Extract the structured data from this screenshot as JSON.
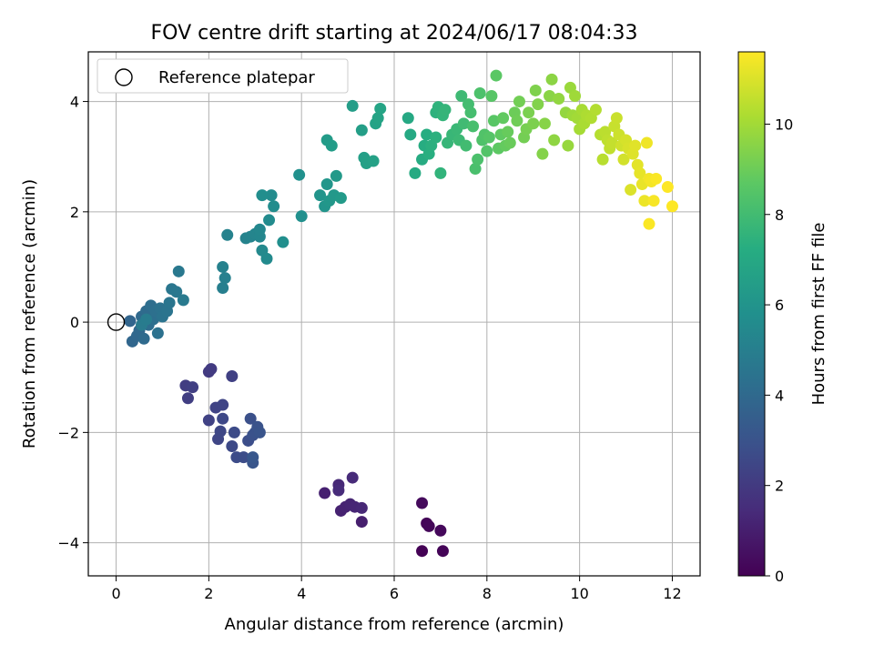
{
  "chart_data": {
    "type": "scatter",
    "title": "FOV centre drift starting at 2024/06/17 08:04:33",
    "xlabel": "Angular distance from reference (arcmin)",
    "ylabel": "Rotation from reference (arcmin)",
    "xlim": [
      -0.6,
      12.6
    ],
    "ylim": [
      -4.6,
      4.9
    ],
    "xticks": [
      0,
      2,
      4,
      6,
      8,
      10,
      12
    ],
    "yticks": [
      -4,
      -2,
      0,
      2,
      4
    ],
    "grid": true,
    "legend": {
      "position": "top-left",
      "entries": [
        "Reference platepar"
      ]
    },
    "reference_point": {
      "x": 0,
      "y": 0
    },
    "colorbar": {
      "label": "Hours from first FF file",
      "range": [
        0,
        11.6
      ],
      "ticks": [
        0,
        2,
        4,
        6,
        8,
        10
      ],
      "colormap": "viridis"
    },
    "points": [
      [
        6.6,
        -4.15,
        0.05
      ],
      [
        7.05,
        -4.15,
        0.1
      ],
      [
        6.7,
        -3.65,
        0.15
      ],
      [
        6.75,
        -3.7,
        0.2
      ],
      [
        7.0,
        -3.78,
        0.25
      ],
      [
        6.6,
        -3.28,
        0.3
      ],
      [
        5.3,
        -3.62,
        1.0
      ],
      [
        4.5,
        -3.1,
        1.05
      ],
      [
        4.85,
        -3.42,
        1.1
      ],
      [
        4.95,
        -3.35,
        1.15
      ],
      [
        5.05,
        -3.3,
        1.2
      ],
      [
        5.15,
        -3.35,
        1.25
      ],
      [
        5.3,
        -3.37,
        1.3
      ],
      [
        4.8,
        -2.95,
        1.35
      ],
      [
        5.1,
        -2.82,
        1.4
      ],
      [
        4.8,
        -3.05,
        1.45
      ],
      [
        2.0,
        -0.9,
        2.0
      ],
      [
        2.05,
        -0.85,
        2.05
      ],
      [
        1.5,
        -1.15,
        2.1
      ],
      [
        1.55,
        -1.38,
        2.15
      ],
      [
        1.65,
        -1.18,
        2.2
      ],
      [
        2.5,
        -0.98,
        2.25
      ],
      [
        2.0,
        -1.78,
        2.3
      ],
      [
        2.15,
        -1.55,
        2.35
      ],
      [
        2.3,
        -1.5,
        2.4
      ],
      [
        2.2,
        -2.12,
        2.45
      ],
      [
        2.25,
        -1.98,
        2.5
      ],
      [
        2.3,
        -1.75,
        2.55
      ],
      [
        2.5,
        -2.25,
        2.6
      ],
      [
        2.55,
        -2.0,
        2.65
      ],
      [
        2.6,
        -2.45,
        2.7
      ],
      [
        2.75,
        -2.45,
        2.75
      ],
      [
        2.85,
        -2.15,
        2.8
      ],
      [
        2.9,
        -1.75,
        2.85
      ],
      [
        2.95,
        -2.05,
        2.9
      ],
      [
        3.0,
        -2.0,
        2.95
      ],
      [
        3.05,
        -1.9,
        3.0
      ],
      [
        3.1,
        -2.0,
        3.05
      ],
      [
        2.95,
        -2.55,
        3.1
      ],
      [
        2.95,
        -2.45,
        3.15
      ],
      [
        0.3,
        0.02,
        3.8
      ],
      [
        0.35,
        -0.35,
        3.85
      ],
      [
        0.45,
        -0.25,
        3.9
      ],
      [
        0.5,
        -0.15,
        3.95
      ],
      [
        0.55,
        0.1,
        4.0
      ],
      [
        0.6,
        -0.3,
        4.05
      ],
      [
        0.65,
        0.2,
        4.1
      ],
      [
        0.7,
        -0.05,
        4.15
      ],
      [
        0.75,
        0.3,
        4.2
      ],
      [
        0.8,
        0.05,
        4.25
      ],
      [
        0.85,
        0.2,
        4.3
      ],
      [
        0.9,
        -0.2,
        4.35
      ],
      [
        0.95,
        0.25,
        4.4
      ],
      [
        1.0,
        0.1,
        4.45
      ],
      [
        1.1,
        0.2,
        4.5
      ],
      [
        1.15,
        0.35,
        4.55
      ],
      [
        1.2,
        0.6,
        4.6
      ],
      [
        1.3,
        0.55,
        4.65
      ],
      [
        1.35,
        0.92,
        4.7
      ],
      [
        1.45,
        0.4,
        4.75
      ],
      [
        0.55,
        -0.05,
        4.8
      ],
      [
        0.65,
        0.05,
        4.85
      ],
      [
        2.3,
        0.62,
        5.0
      ],
      [
        2.35,
        0.8,
        5.05
      ],
      [
        2.3,
        1.0,
        5.1
      ],
      [
        2.4,
        1.58,
        5.15
      ],
      [
        2.8,
        1.52,
        5.2
      ],
      [
        2.9,
        1.55,
        5.25
      ],
      [
        3.0,
        1.6,
        5.3
      ],
      [
        3.1,
        1.55,
        5.35
      ],
      [
        3.1,
        1.68,
        5.4
      ],
      [
        3.15,
        1.3,
        5.45
      ],
      [
        3.25,
        1.15,
        5.5
      ],
      [
        3.3,
        1.85,
        5.55
      ],
      [
        3.35,
        2.3,
        5.6
      ],
      [
        3.4,
        2.1,
        5.65
      ],
      [
        3.15,
        2.3,
        5.7
      ],
      [
        3.6,
        1.45,
        5.75
      ],
      [
        4.0,
        1.92,
        5.8
      ],
      [
        3.95,
        2.67,
        5.85
      ],
      [
        4.4,
        2.3,
        6.0
      ],
      [
        4.5,
        2.1,
        6.05
      ],
      [
        4.55,
        2.5,
        6.1
      ],
      [
        4.6,
        2.2,
        6.15
      ],
      [
        4.7,
        2.3,
        6.2
      ],
      [
        4.75,
        2.65,
        6.25
      ],
      [
        4.85,
        2.25,
        6.3
      ],
      [
        4.55,
        3.3,
        6.35
      ],
      [
        4.65,
        3.2,
        6.4
      ],
      [
        5.1,
        3.92,
        6.45
      ],
      [
        5.3,
        3.48,
        6.5
      ],
      [
        5.35,
        2.98,
        6.55
      ],
      [
        5.4,
        2.88,
        6.6
      ],
      [
        5.55,
        2.92,
        6.65
      ],
      [
        5.6,
        3.6,
        6.7
      ],
      [
        5.65,
        3.7,
        6.75
      ],
      [
        5.7,
        3.87,
        6.8
      ],
      [
        6.3,
        3.7,
        7.0
      ],
      [
        6.35,
        3.4,
        7.05
      ],
      [
        6.45,
        2.7,
        7.1
      ],
      [
        6.6,
        2.95,
        7.15
      ],
      [
        6.65,
        3.2,
        7.2
      ],
      [
        6.7,
        3.4,
        7.25
      ],
      [
        6.75,
        3.05,
        7.3
      ],
      [
        6.8,
        3.2,
        7.35
      ],
      [
        6.9,
        3.35,
        7.4
      ],
      [
        6.9,
        3.8,
        7.45
      ],
      [
        6.95,
        3.9,
        7.5
      ],
      [
        7.0,
        2.7,
        7.55
      ],
      [
        7.05,
        3.75,
        7.6
      ],
      [
        7.1,
        3.85,
        7.65
      ],
      [
        7.15,
        3.25,
        7.7
      ],
      [
        7.25,
        3.4,
        7.75
      ],
      [
        7.35,
        3.5,
        7.8
      ],
      [
        7.4,
        3.3,
        7.85
      ],
      [
        7.45,
        4.1,
        7.9
      ],
      [
        7.5,
        3.6,
        7.95
      ],
      [
        7.55,
        3.2,
        8.0
      ],
      [
        7.6,
        3.95,
        8.05
      ],
      [
        7.65,
        3.8,
        8.1
      ],
      [
        7.7,
        3.55,
        8.15
      ],
      [
        7.75,
        2.78,
        8.2
      ],
      [
        7.8,
        2.95,
        8.25
      ],
      [
        7.85,
        4.15,
        8.3
      ],
      [
        7.9,
        3.3,
        8.35
      ],
      [
        7.95,
        3.4,
        8.4
      ],
      [
        8.0,
        3.1,
        8.45
      ],
      [
        8.05,
        3.35,
        8.5
      ],
      [
        8.1,
        4.1,
        8.55
      ],
      [
        8.15,
        3.65,
        8.6
      ],
      [
        8.2,
        4.47,
        8.65
      ],
      [
        8.25,
        3.15,
        8.7
      ],
      [
        8.3,
        3.4,
        8.75
      ],
      [
        8.35,
        3.7,
        8.8
      ],
      [
        8.4,
        3.2,
        8.85
      ],
      [
        8.45,
        3.45,
        8.9
      ],
      [
        8.5,
        3.25,
        8.95
      ],
      [
        8.6,
        3.8,
        9.0
      ],
      [
        8.65,
        3.65,
        9.05
      ],
      [
        8.7,
        4.0,
        9.1
      ],
      [
        8.8,
        3.35,
        9.15
      ],
      [
        8.85,
        3.5,
        9.2
      ],
      [
        8.9,
        3.8,
        9.25
      ],
      [
        9.0,
        3.6,
        9.3
      ],
      [
        9.05,
        4.2,
        9.35
      ],
      [
        9.1,
        3.95,
        9.4
      ],
      [
        9.2,
        3.05,
        9.45
      ],
      [
        9.25,
        3.6,
        9.5
      ],
      [
        9.35,
        4.1,
        9.55
      ],
      [
        9.4,
        4.4,
        9.6
      ],
      [
        9.45,
        3.3,
        9.65
      ],
      [
        9.55,
        4.05,
        9.7
      ],
      [
        9.7,
        3.8,
        9.75
      ],
      [
        9.75,
        3.2,
        9.8
      ],
      [
        9.8,
        4.25,
        9.85
      ],
      [
        9.85,
        3.75,
        9.9
      ],
      [
        9.9,
        4.1,
        9.95
      ],
      [
        9.95,
        3.7,
        10.0
      ],
      [
        10.0,
        3.5,
        10.05
      ],
      [
        10.05,
        3.85,
        10.1
      ],
      [
        10.1,
        3.6,
        10.15
      ],
      [
        10.15,
        3.75,
        10.2
      ],
      [
        10.25,
        3.7,
        10.25
      ],
      [
        10.35,
        3.85,
        10.3
      ],
      [
        10.45,
        3.4,
        10.35
      ],
      [
        10.5,
        2.95,
        10.4
      ],
      [
        10.55,
        3.45,
        10.45
      ],
      [
        10.6,
        3.3,
        10.5
      ],
      [
        10.65,
        3.15,
        10.55
      ],
      [
        10.7,
        3.25,
        10.6
      ],
      [
        10.75,
        3.55,
        10.65
      ],
      [
        10.8,
        3.7,
        10.7
      ],
      [
        10.85,
        3.4,
        10.75
      ],
      [
        10.9,
        3.2,
        10.8
      ],
      [
        10.95,
        2.95,
        10.85
      ],
      [
        11.0,
        3.3,
        10.9
      ],
      [
        11.05,
        3.15,
        10.95
      ],
      [
        11.1,
        2.4,
        11.0
      ],
      [
        11.15,
        3.05,
        11.05
      ],
      [
        11.2,
        3.2,
        11.1
      ],
      [
        11.25,
        2.85,
        11.15
      ],
      [
        11.3,
        2.7,
        11.2
      ],
      [
        11.35,
        2.5,
        11.25
      ],
      [
        11.4,
        2.2,
        11.3
      ],
      [
        11.45,
        3.25,
        11.35
      ],
      [
        11.5,
        2.6,
        11.4
      ],
      [
        11.55,
        2.55,
        11.45
      ],
      [
        11.6,
        2.2,
        11.5
      ],
      [
        11.65,
        2.6,
        11.55
      ],
      [
        11.5,
        1.78,
        11.55
      ],
      [
        11.9,
        2.45,
        11.6
      ],
      [
        12.0,
        2.1,
        11.6
      ]
    ]
  }
}
